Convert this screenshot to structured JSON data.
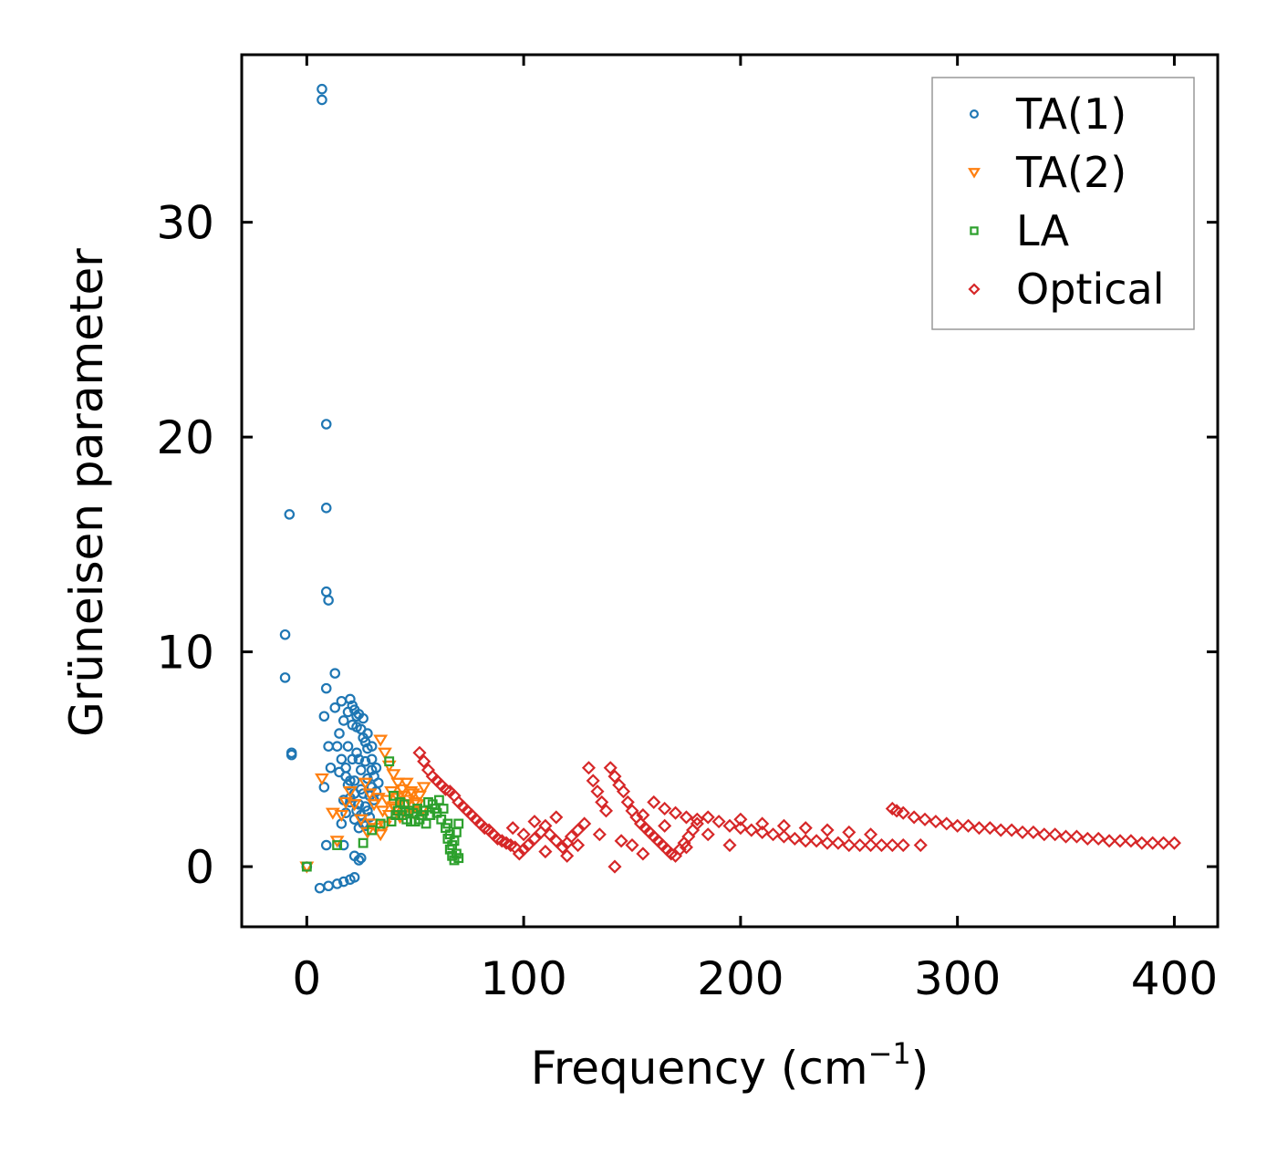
{
  "chart_data": {
    "type": "scatter",
    "title": "",
    "xlabel": "Frequency (cm",
    "xlabel_sup": "−1",
    "xlabel_close": ")",
    "ylabel": "Grüneisen parameter",
    "xlim": [
      -30,
      420
    ],
    "ylim": [
      -2.8,
      37.8
    ],
    "xticks": [
      0,
      100,
      200,
      300,
      400
    ],
    "xtick_labels": [
      "0",
      "100",
      "200",
      "300",
      "400"
    ],
    "yticks": [
      0,
      10,
      20,
      30
    ],
    "ytick_labels": [
      "0",
      "10",
      "20",
      "30"
    ],
    "grid": false,
    "legend_position": "top-right",
    "series": [
      {
        "name": "TA(1)",
        "marker": "circle",
        "color": "#1f77b4",
        "points": [
          [
            7,
            36.2
          ],
          [
            7,
            35.7
          ],
          [
            9,
            20.6
          ],
          [
            9,
            16.7
          ],
          [
            -8,
            16.4
          ],
          [
            9,
            12.8
          ],
          [
            10,
            12.4
          ],
          [
            -10,
            10.8
          ],
          [
            -10,
            8.8
          ],
          [
            13,
            9.0
          ],
          [
            9,
            8.3
          ],
          [
            -7,
            5.3
          ],
          [
            -7,
            5.2
          ],
          [
            8,
            7.0
          ],
          [
            10,
            5.6
          ],
          [
            8,
            3.7
          ],
          [
            11,
            4.6
          ],
          [
            0,
            0.0
          ],
          [
            6,
            -1.0
          ],
          [
            10,
            -0.9
          ],
          [
            14,
            -0.8
          ],
          [
            17,
            -0.7
          ],
          [
            20,
            -0.6
          ],
          [
            22,
            -0.5
          ],
          [
            9,
            1.0
          ],
          [
            17,
            1.0
          ],
          [
            22,
            0.5
          ],
          [
            24,
            0.3
          ],
          [
            25,
            0.4
          ],
          [
            16,
            2.0
          ],
          [
            18,
            2.5
          ],
          [
            20,
            3.2
          ],
          [
            22,
            4.0
          ],
          [
            24,
            5.0
          ],
          [
            26,
            6.0
          ],
          [
            28,
            5.5
          ],
          [
            30,
            4.5
          ],
          [
            32,
            3.5
          ],
          [
            27,
            2.8
          ],
          [
            25,
            3.6
          ],
          [
            23,
            6.5
          ],
          [
            21,
            7.5
          ],
          [
            19,
            7.2
          ],
          [
            17,
            6.8
          ],
          [
            15,
            6.2
          ],
          [
            16,
            5.0
          ],
          [
            18,
            4.2
          ],
          [
            20,
            3.0
          ],
          [
            22,
            2.2
          ],
          [
            24,
            1.8
          ],
          [
            26,
            2.0
          ],
          [
            28,
            2.6
          ],
          [
            29,
            3.3
          ],
          [
            31,
            4.2
          ],
          [
            30,
            5.0
          ],
          [
            27,
            5.8
          ],
          [
            25,
            6.4
          ],
          [
            23,
            7.0
          ],
          [
            21,
            6.6
          ],
          [
            19,
            5.6
          ],
          [
            18,
            4.6
          ],
          [
            20,
            4.0
          ],
          [
            22,
            3.4
          ],
          [
            24,
            2.9
          ],
          [
            26,
            3.4
          ],
          [
            28,
            4.1
          ],
          [
            30,
            3.7
          ],
          [
            32,
            4.6
          ],
          [
            33,
            3.9
          ],
          [
            25,
            4.5
          ],
          [
            27,
            4.9
          ],
          [
            23,
            5.3
          ],
          [
            21,
            5.0
          ],
          [
            19,
            3.8
          ],
          [
            17,
            3.1
          ],
          [
            15,
            4.4
          ],
          [
            14,
            5.6
          ],
          [
            13,
            7.4
          ],
          [
            16,
            7.7
          ],
          [
            20,
            7.8
          ],
          [
            22,
            7.3
          ],
          [
            24,
            7.1
          ],
          [
            26,
            6.9
          ],
          [
            28,
            6.2
          ],
          [
            30,
            5.6
          ],
          [
            31,
            3.1
          ],
          [
            29,
            2.3
          ],
          [
            27,
            1.9
          ],
          [
            25,
            2.4
          ],
          [
            23,
            2.6
          ]
        ]
      },
      {
        "name": "TA(2)",
        "marker": "triangle-down",
        "color": "#ff7f0e",
        "points": [
          [
            0,
            0.0
          ],
          [
            7,
            4.1
          ],
          [
            12,
            2.5
          ],
          [
            14,
            1.2
          ],
          [
            16,
            2.4
          ],
          [
            18,
            3.0
          ],
          [
            20,
            3.5
          ],
          [
            22,
            2.9
          ],
          [
            25,
            2.2
          ],
          [
            28,
            1.6
          ],
          [
            30,
            2.0
          ],
          [
            32,
            1.8
          ],
          [
            34,
            1.5
          ],
          [
            36,
            1.9
          ],
          [
            38,
            2.4
          ],
          [
            40,
            2.8
          ],
          [
            42,
            3.2
          ],
          [
            44,
            3.6
          ],
          [
            46,
            3.9
          ],
          [
            48,
            3.5
          ],
          [
            50,
            3.0
          ],
          [
            52,
            3.3
          ],
          [
            54,
            3.7
          ],
          [
            34,
            5.9
          ],
          [
            36,
            5.3
          ],
          [
            38,
            4.7
          ],
          [
            40,
            4.3
          ],
          [
            42,
            3.9
          ],
          [
            44,
            3.3
          ],
          [
            46,
            2.9
          ],
          [
            48,
            2.6
          ],
          [
            50,
            2.4
          ],
          [
            35,
            2.6
          ],
          [
            37,
            3.1
          ],
          [
            39,
            3.5
          ],
          [
            41,
            2.7
          ],
          [
            43,
            2.3
          ],
          [
            45,
            2.6
          ],
          [
            47,
            3.1
          ],
          [
            49,
            3.4
          ],
          [
            51,
            2.9
          ],
          [
            53,
            2.6
          ],
          [
            33,
            3.2
          ],
          [
            31,
            2.9
          ],
          [
            29,
            3.4
          ],
          [
            27,
            3.9
          ]
        ]
      },
      {
        "name": "LA",
        "marker": "square",
        "color": "#2ca02c",
        "points": [
          [
            0,
            0.0
          ],
          [
            14,
            1.0
          ],
          [
            26,
            1.1
          ],
          [
            30,
            1.7
          ],
          [
            34,
            2.0
          ],
          [
            38,
            4.9
          ],
          [
            40,
            3.3
          ],
          [
            42,
            2.6
          ],
          [
            44,
            2.4
          ],
          [
            46,
            2.2
          ],
          [
            48,
            2.1
          ],
          [
            50,
            2.1
          ],
          [
            52,
            2.2
          ],
          [
            54,
            2.6
          ],
          [
            56,
            3.0
          ],
          [
            58,
            2.9
          ],
          [
            60,
            2.5
          ],
          [
            62,
            2.2
          ],
          [
            64,
            1.8
          ],
          [
            65,
            1.3
          ],
          [
            66,
            0.8
          ],
          [
            67,
            0.5
          ],
          [
            68,
            1.2
          ],
          [
            69,
            1.6
          ],
          [
            70,
            2.0
          ],
          [
            70,
            0.4
          ],
          [
            69,
            0.6
          ],
          [
            68,
            0.3
          ],
          [
            67,
            1.0
          ],
          [
            66,
            1.5
          ],
          [
            65,
            2.0
          ],
          [
            63,
            2.7
          ],
          [
            61,
            3.1
          ],
          [
            59,
            2.7
          ],
          [
            57,
            2.4
          ],
          [
            55,
            2.0
          ],
          [
            53,
            2.4
          ],
          [
            51,
            2.7
          ],
          [
            49,
            2.5
          ],
          [
            47,
            2.6
          ],
          [
            45,
            2.9
          ],
          [
            43,
            3.0
          ],
          [
            41,
            2.4
          ],
          [
            39,
            2.1
          ]
        ]
      },
      {
        "name": "Optical",
        "marker": "diamond",
        "color": "#d62728",
        "points": [
          [
            52,
            5.3
          ],
          [
            54,
            4.9
          ],
          [
            56,
            4.5
          ],
          [
            58,
            4.2
          ],
          [
            60,
            4.0
          ],
          [
            62,
            3.8
          ],
          [
            64,
            3.6
          ],
          [
            66,
            3.5
          ],
          [
            68,
            3.3
          ],
          [
            70,
            3.0
          ],
          [
            72,
            2.8
          ],
          [
            74,
            2.6
          ],
          [
            76,
            2.4
          ],
          [
            78,
            2.2
          ],
          [
            80,
            2.0
          ],
          [
            82,
            1.8
          ],
          [
            84,
            1.7
          ],
          [
            86,
            1.5
          ],
          [
            88,
            1.3
          ],
          [
            90,
            1.2
          ],
          [
            92,
            1.1
          ],
          [
            94,
            1.0
          ],
          [
            96,
            0.9
          ],
          [
            98,
            0.6
          ],
          [
            100,
            0.8
          ],
          [
            102,
            1.0
          ],
          [
            105,
            1.3
          ],
          [
            108,
            1.6
          ],
          [
            110,
            1.9
          ],
          [
            112,
            1.5
          ],
          [
            115,
            1.2
          ],
          [
            118,
            0.9
          ],
          [
            120,
            1.1
          ],
          [
            122,
            1.4
          ],
          [
            125,
            1.7
          ],
          [
            128,
            2.0
          ],
          [
            130,
            4.6
          ],
          [
            132,
            4.0
          ],
          [
            134,
            3.5
          ],
          [
            136,
            3.0
          ],
          [
            138,
            2.6
          ],
          [
            140,
            4.6
          ],
          [
            142,
            4.2
          ],
          [
            144,
            3.8
          ],
          [
            146,
            3.5
          ],
          [
            148,
            3.0
          ],
          [
            150,
            2.6
          ],
          [
            152,
            2.3
          ],
          [
            154,
            2.0
          ],
          [
            156,
            1.8
          ],
          [
            158,
            1.6
          ],
          [
            160,
            1.4
          ],
          [
            162,
            1.2
          ],
          [
            164,
            1.0
          ],
          [
            166,
            0.8
          ],
          [
            168,
            0.6
          ],
          [
            170,
            0.5
          ],
          [
            172,
            0.8
          ],
          [
            174,
            1.1
          ],
          [
            176,
            1.4
          ],
          [
            178,
            1.7
          ],
          [
            180,
            2.0
          ],
          [
            142,
            0.0
          ],
          [
            150,
            1.0
          ],
          [
            155,
            0.6
          ],
          [
            160,
            3.0
          ],
          [
            165,
            2.7
          ],
          [
            170,
            2.5
          ],
          [
            175,
            2.3
          ],
          [
            180,
            2.2
          ],
          [
            185,
            2.3
          ],
          [
            190,
            2.1
          ],
          [
            195,
            1.9
          ],
          [
            200,
            1.8
          ],
          [
            205,
            1.7
          ],
          [
            210,
            1.6
          ],
          [
            215,
            1.5
          ],
          [
            220,
            1.4
          ],
          [
            225,
            1.3
          ],
          [
            230,
            1.2
          ],
          [
            235,
            1.2
          ],
          [
            240,
            1.1
          ],
          [
            245,
            1.1
          ],
          [
            250,
            1.0
          ],
          [
            255,
            1.0
          ],
          [
            260,
            1.0
          ],
          [
            265,
            1.0
          ],
          [
            270,
            1.0
          ],
          [
            275,
            1.0
          ],
          [
            283,
            1.0
          ],
          [
            200,
            2.2
          ],
          [
            210,
            2.0
          ],
          [
            220,
            1.9
          ],
          [
            230,
            1.8
          ],
          [
            240,
            1.7
          ],
          [
            250,
            1.6
          ],
          [
            260,
            1.5
          ],
          [
            270,
            2.7
          ],
          [
            272,
            2.6
          ],
          [
            275,
            2.5
          ],
          [
            280,
            2.3
          ],
          [
            285,
            2.2
          ],
          [
            290,
            2.1
          ],
          [
            295,
            2.0
          ],
          [
            300,
            1.9
          ],
          [
            305,
            1.9
          ],
          [
            310,
            1.8
          ],
          [
            315,
            1.8
          ],
          [
            320,
            1.7
          ],
          [
            325,
            1.7
          ],
          [
            330,
            1.6
          ],
          [
            335,
            1.6
          ],
          [
            340,
            1.5
          ],
          [
            345,
            1.5
          ],
          [
            350,
            1.4
          ],
          [
            355,
            1.4
          ],
          [
            360,
            1.3
          ],
          [
            365,
            1.3
          ],
          [
            370,
            1.2
          ],
          [
            375,
            1.2
          ],
          [
            380,
            1.2
          ],
          [
            385,
            1.1
          ],
          [
            390,
            1.1
          ],
          [
            395,
            1.1
          ],
          [
            400,
            1.1
          ],
          [
            95,
            1.8
          ],
          [
            100,
            1.5
          ],
          [
            105,
            2.1
          ],
          [
            110,
            0.7
          ],
          [
            115,
            2.3
          ],
          [
            120,
            0.5
          ],
          [
            125,
            1.0
          ],
          [
            135,
            1.5
          ],
          [
            145,
            1.2
          ],
          [
            155,
            2.4
          ],
          [
            165,
            1.9
          ],
          [
            175,
            0.9
          ],
          [
            185,
            1.5
          ],
          [
            195,
            1.0
          ]
        ]
      }
    ]
  }
}
